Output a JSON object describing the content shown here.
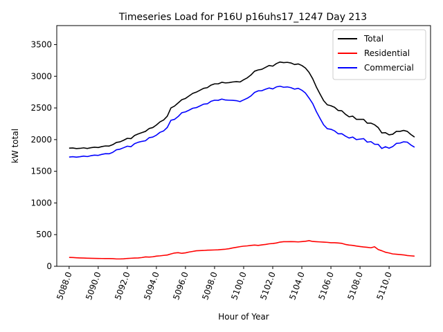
{
  "chart_data": {
    "type": "line",
    "title": "Timeseries Load for P16U p16uhs17_1247  Day 213",
    "xlabel": "Hour of Year",
    "ylabel": "kW total",
    "xlim": [
      5087.15,
      5112.85
    ],
    "ylim": [
      0,
      3800
    ],
    "x_ticks": [
      5088,
      5090,
      5092,
      5094,
      5096,
      5098,
      5100,
      5102,
      5104,
      5106,
      5108,
      5110
    ],
    "x_tick_labels": [
      "5088.0",
      "5090.0",
      "5092.0",
      "5094.0",
      "5096.0",
      "5098.0",
      "5100.0",
      "5102.0",
      "5104.0",
      "5106.0",
      "5108.0",
      "5110.0"
    ],
    "y_ticks": [
      0,
      500,
      1000,
      1500,
      2000,
      2500,
      3000,
      3500
    ],
    "y_tick_labels": [
      "0",
      "500",
      "1000",
      "1500",
      "2000",
      "2500",
      "3000",
      "3500"
    ],
    "legend_position": "top-right",
    "x": [
      5088.0,
      5088.25,
      5088.5,
      5088.75,
      5089.0,
      5089.25,
      5089.5,
      5089.75,
      5090.0,
      5090.25,
      5090.5,
      5090.75,
      5091.0,
      5091.25,
      5091.5,
      5091.75,
      5092.0,
      5092.25,
      5092.5,
      5092.75,
      5093.0,
      5093.25,
      5093.5,
      5093.75,
      5094.0,
      5094.25,
      5094.5,
      5094.75,
      5095.0,
      5095.25,
      5095.5,
      5095.75,
      5096.0,
      5096.25,
      5096.5,
      5096.75,
      5097.0,
      5097.25,
      5097.5,
      5097.75,
      5098.0,
      5098.25,
      5098.5,
      5098.75,
      5099.0,
      5099.25,
      5099.5,
      5099.75,
      5100.0,
      5100.25,
      5100.5,
      5100.75,
      5101.0,
      5101.25,
      5101.5,
      5101.75,
      5102.0,
      5102.25,
      5102.5,
      5102.75,
      5103.0,
      5103.25,
      5103.5,
      5103.75,
      5104.0,
      5104.25,
      5104.5,
      5104.75,
      5105.0,
      5105.25,
      5105.5,
      5105.75,
      5106.0,
      5106.25,
      5106.5,
      5106.75,
      5107.0,
      5107.25,
      5107.5,
      5107.75,
      5108.0,
      5108.25,
      5108.5,
      5108.75,
      5109.0,
      5109.25,
      5109.5,
      5109.75,
      5110.0,
      5110.25,
      5110.5,
      5110.75,
      5111.0,
      5111.25,
      5111.5,
      5111.75
    ],
    "series": [
      {
        "name": "Total",
        "color": "#000000",
        "values": [
          1865,
          1868,
          1858,
          1862,
          1870,
          1860,
          1872,
          1880,
          1875,
          1890,
          1900,
          1898,
          1920,
          1955,
          1965,
          1990,
          2020,
          2015,
          2065,
          2090,
          2110,
          2130,
          2175,
          2190,
          2230,
          2280,
          2310,
          2370,
          2500,
          2530,
          2580,
          2630,
          2650,
          2690,
          2730,
          2750,
          2780,
          2810,
          2820,
          2860,
          2880,
          2880,
          2905,
          2895,
          2900,
          2910,
          2915,
          2910,
          2945,
          2975,
          3020,
          3080,
          3100,
          3110,
          3140,
          3170,
          3160,
          3200,
          3225,
          3215,
          3220,
          3210,
          3185,
          3195,
          3170,
          3130,
          3060,
          2960,
          2830,
          2720,
          2615,
          2550,
          2535,
          2510,
          2460,
          2455,
          2400,
          2360,
          2370,
          2320,
          2320,
          2320,
          2260,
          2260,
          2235,
          2190,
          2105,
          2110,
          2075,
          2085,
          2130,
          2130,
          2145,
          2130,
          2080,
          2040
        ]
      },
      {
        "name": "Residential",
        "color": "#ff0000",
        "values": [
          140,
          138,
          135,
          132,
          130,
          128,
          126,
          125,
          124,
          123,
          122,
          122,
          121,
          116,
          116,
          118,
          124,
          127,
          130,
          132,
          138,
          148,
          145,
          150,
          160,
          165,
          172,
          178,
          195,
          210,
          215,
          205,
          212,
          225,
          235,
          245,
          248,
          250,
          255,
          256,
          258,
          260,
          265,
          270,
          278,
          290,
          300,
          310,
          318,
          322,
          330,
          335,
          330,
          338,
          345,
          355,
          360,
          368,
          382,
          388,
          388,
          390,
          388,
          385,
          390,
          395,
          405,
          392,
          388,
          385,
          382,
          378,
          372,
          372,
          368,
          362,
          345,
          335,
          330,
          320,
          312,
          305,
          300,
          292,
          308,
          265,
          245,
          222,
          210,
          195,
          190,
          185,
          180,
          170,
          165,
          160
        ]
      },
      {
        "name": "Commercial",
        "color": "#0000ff",
        "values": [
          1725,
          1730,
          1723,
          1730,
          1740,
          1732,
          1746,
          1755,
          1751,
          1767,
          1778,
          1776,
          1799,
          1839,
          1849,
          1872,
          1896,
          1888,
          1935,
          1958,
          1972,
          1982,
          2030,
          2040,
          2070,
          2115,
          2138,
          2192,
          2305,
          2320,
          2365,
          2425,
          2438,
          2465,
          2495,
          2505,
          2532,
          2560,
          2565,
          2604,
          2622,
          2620,
          2640,
          2625,
          2622,
          2620,
          2615,
          2600,
          2627,
          2653,
          2690,
          2745,
          2770,
          2772,
          2795,
          2815,
          2800,
          2832,
          2843,
          2827,
          2832,
          2820,
          2797,
          2810,
          2780,
          2735,
          2655,
          2568,
          2442,
          2335,
          2233,
          2172,
          2163,
          2138,
          2092,
          2093,
          2055,
          2025,
          2040,
          2000,
          2008,
          2015,
          1960,
          1968,
          1927,
          1925,
          1860,
          1888,
          1865,
          1890,
          1940,
          1945,
          1965,
          1960,
          1915,
          1880
        ]
      }
    ]
  }
}
